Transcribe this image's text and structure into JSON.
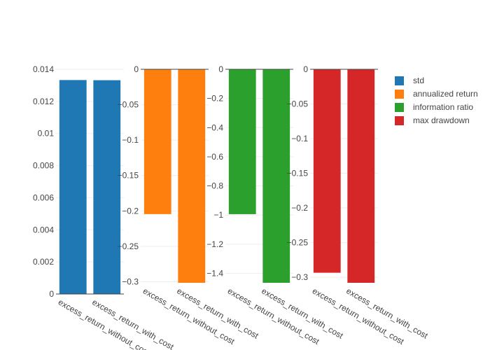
{
  "chart_data": [
    {
      "type": "bar",
      "name": "std",
      "color": "#1f77b4",
      "categories": [
        "excess_return_without_cost",
        "excess_return_with_cost"
      ],
      "values": [
        0.01333,
        0.01332
      ],
      "ylim": [
        0,
        0.014
      ],
      "yticks": [
        0,
        0.002,
        0.004,
        0.006,
        0.008,
        0.01,
        0.012,
        0.014
      ],
      "ytick_labels": [
        "0",
        "0.002",
        "0.004",
        "0.006",
        "0.008",
        "0.01",
        "0.012",
        "0.014"
      ]
    },
    {
      "type": "bar",
      "name": "annualized return",
      "color": "#ff7f0e",
      "categories": [
        "excess_return_without_cost",
        "excess_return_with_cost"
      ],
      "values": [
        -0.2045,
        -0.3015
      ],
      "ylim": [
        -0.3015,
        0
      ],
      "yticks": [
        0,
        -0.05,
        -0.1,
        -0.15,
        -0.2,
        -0.25,
        -0.3
      ],
      "ytick_labels": [
        "0",
        "−0.05",
        "−0.1",
        "−0.15",
        "−0.2",
        "−0.25",
        "−0.3"
      ]
    },
    {
      "type": "bar",
      "name": "information ratio",
      "color": "#2ca02c",
      "categories": [
        "excess_return_without_cost",
        "excess_return_with_cost"
      ],
      "values": [
        -0.994,
        -1.465
      ],
      "ylim": [
        -1.465,
        0
      ],
      "yticks": [
        0,
        -0.2,
        -0.4,
        -0.6,
        -0.8,
        -1,
        -1.2,
        -1.4
      ],
      "ytick_labels": [
        "0",
        "−0.2",
        "−0.4",
        "−0.6",
        "−0.8",
        "−1",
        "−1.2",
        "−1.4"
      ]
    },
    {
      "type": "bar",
      "name": "max drawdown",
      "color": "#d62728",
      "categories": [
        "excess_return_without_cost",
        "excess_return_with_cost"
      ],
      "values": [
        -0.2935,
        -0.308
      ],
      "ylim": [
        -0.308,
        0
      ],
      "yticks": [
        0,
        -0.05,
        -0.1,
        -0.15,
        -0.2,
        -0.25,
        -0.3
      ],
      "ytick_labels": [
        "0",
        "−0.05",
        "−0.1",
        "−0.15",
        "−0.2",
        "−0.25",
        "−0.3"
      ]
    }
  ],
  "legend": {
    "position": "top-right",
    "items": [
      {
        "label": "std",
        "color": "#1f77b4"
      },
      {
        "label": "annualized return",
        "color": "#ff7f0e"
      },
      {
        "label": "information ratio",
        "color": "#2ca02c"
      },
      {
        "label": "max drawdown",
        "color": "#d62728"
      }
    ]
  },
  "grid": true
}
